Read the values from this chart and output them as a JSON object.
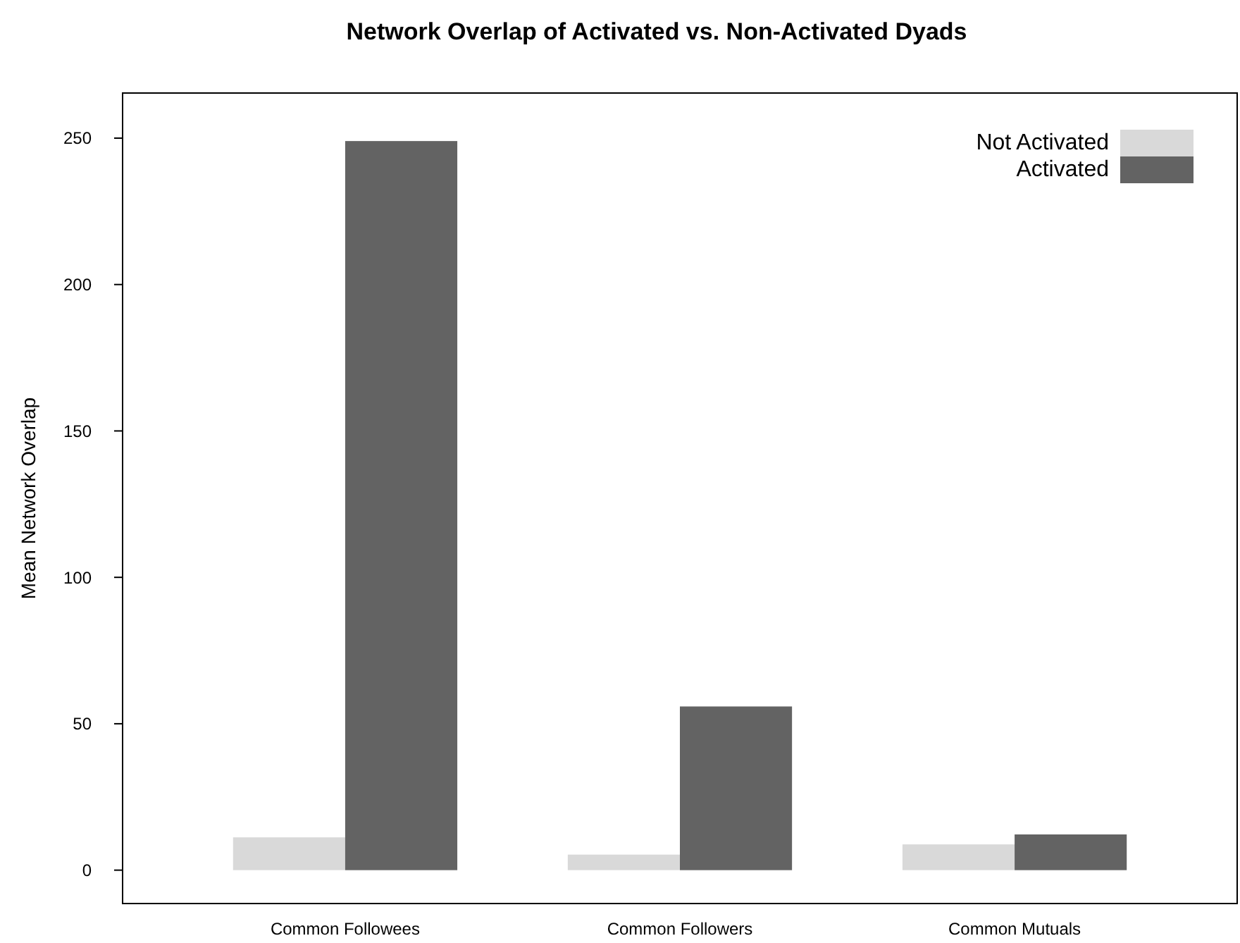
{
  "chart_data": {
    "type": "bar",
    "title": "Network Overlap of Activated vs. Non-Activated Dyads",
    "ylabel": "Mean Network Overlap",
    "categories": [
      "Common Followees",
      "Common Followers",
      "Common Mutuals"
    ],
    "series": [
      {
        "name": "Not Activated",
        "color": "#d9d9d9",
        "values": [
          11.2,
          5.3,
          8.8
        ]
      },
      {
        "name": "Activated",
        "color": "#636363",
        "values": [
          249,
          55.9,
          12.2
        ]
      }
    ],
    "ylim": [
      -11.4,
      265.4
    ],
    "yticks": [
      0,
      50,
      100,
      150,
      200,
      250
    ],
    "grid": false,
    "legend": "top right"
  }
}
